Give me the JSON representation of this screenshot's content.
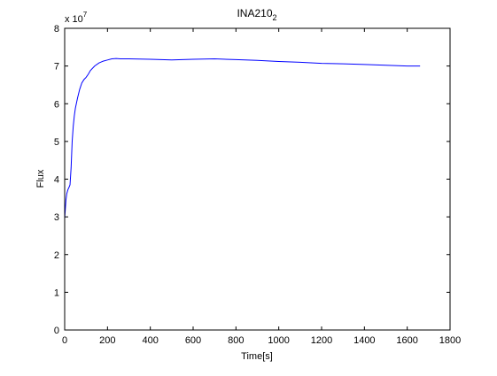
{
  "chart_data": {
    "type": "line",
    "title": "INA210",
    "title_subscript": "2",
    "xlabel": "Time[s]",
    "ylabel": "Flux",
    "exponent_label": {
      "base": "x 10",
      "power": "7"
    },
    "xlim": [
      0,
      1800
    ],
    "ylim": [
      0,
      8
    ],
    "xticks": [
      0,
      200,
      400,
      600,
      800,
      1000,
      1200,
      1400,
      1600,
      1800
    ],
    "yticks": [
      0,
      1,
      2,
      3,
      4,
      5,
      6,
      7,
      8
    ],
    "grid": false,
    "line_color": "#0000ff",
    "series": [
      {
        "x": [
          0,
          3,
          6,
          10,
          15,
          20,
          25,
          30,
          35,
          40,
          45,
          50,
          60,
          70,
          80,
          90,
          100,
          110,
          120,
          140,
          160,
          180,
          200,
          220,
          240,
          260,
          300,
          400,
          500,
          600,
          700,
          800,
          900,
          1000,
          1100,
          1200,
          1300,
          1400,
          1500,
          1600,
          1660
        ],
        "y": [
          2.95,
          3.2,
          3.45,
          3.62,
          3.72,
          3.78,
          3.85,
          4.3,
          5.0,
          5.4,
          5.68,
          5.88,
          6.15,
          6.38,
          6.55,
          6.64,
          6.7,
          6.78,
          6.88,
          7.0,
          7.08,
          7.13,
          7.16,
          7.19,
          7.2,
          7.19,
          7.19,
          7.18,
          7.16,
          7.18,
          7.19,
          7.17,
          7.15,
          7.12,
          7.1,
          7.07,
          7.06,
          7.04,
          7.02,
          7.0,
          7.0
        ]
      }
    ]
  }
}
